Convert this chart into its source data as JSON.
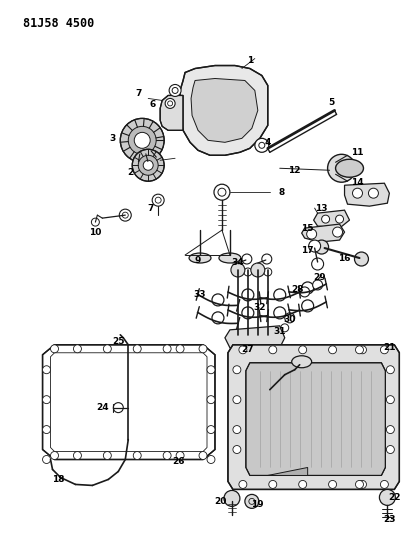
{
  "title": "81J58 4500",
  "background_color": "#ffffff",
  "line_color": "#1a1a1a",
  "fig_width": 4.13,
  "fig_height": 5.33,
  "dpi": 100
}
